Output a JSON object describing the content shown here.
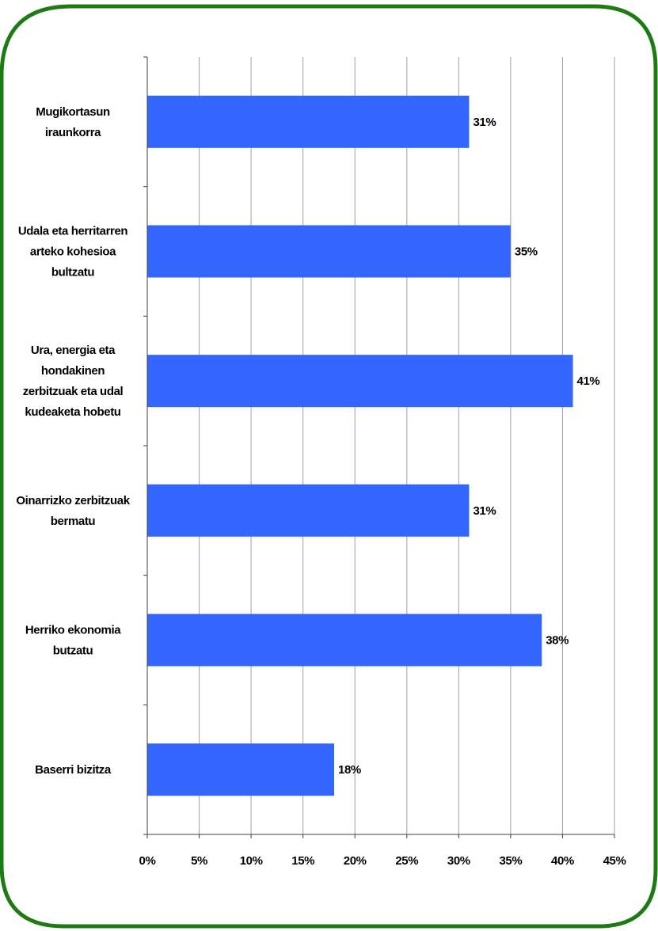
{
  "colors": {
    "bar": "#3366FF",
    "frame": "#1E7B14",
    "grid": "#A0A0A0",
    "axis": "#404040"
  },
  "chart_data": {
    "type": "bar",
    "orientation": "horizontal",
    "categories": [
      [
        "Mugikortasun",
        "iraunkorra"
      ],
      [
        "Udala eta herritarren",
        "arteko kohesioa",
        "bultzatu"
      ],
      [
        "Ura, energia eta",
        "hondakinen",
        "zerbitzuak eta udal",
        "kudeaketa hobetu"
      ],
      [
        "Oinarrizko zerbitzuak",
        "bermatu"
      ],
      [
        "Herriko ekonomia",
        "butzatu"
      ],
      [
        "Baserri bizitza"
      ]
    ],
    "values": [
      31,
      35,
      41,
      31,
      38,
      18
    ],
    "data_labels": [
      "31%",
      "35%",
      "41%",
      "31%",
      "38%",
      "18%"
    ],
    "xlim": [
      0,
      45
    ],
    "xticks": [
      0,
      5,
      10,
      15,
      20,
      25,
      30,
      35,
      40,
      45
    ],
    "xtick_labels": [
      "0%",
      "5%",
      "10%",
      "15%",
      "20%",
      "25%",
      "30%",
      "35%",
      "40%",
      "45%"
    ],
    "grid": "vertical",
    "legend": "none",
    "title": "",
    "xlabel": "",
    "ylabel": ""
  }
}
